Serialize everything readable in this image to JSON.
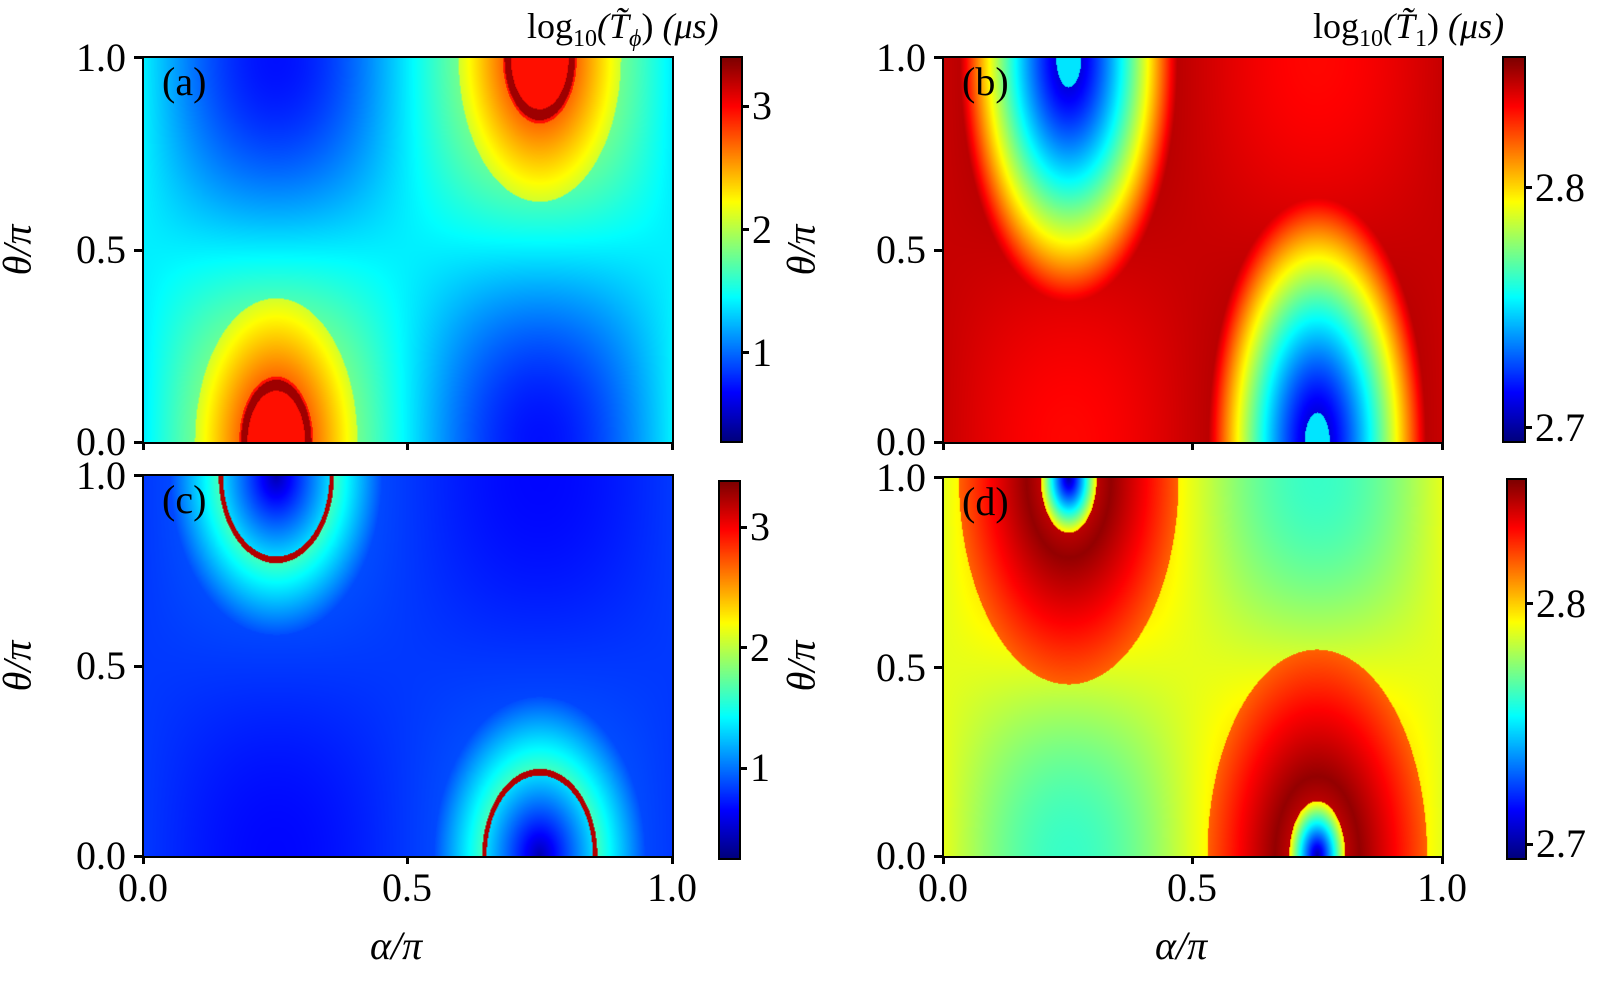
{
  "figure": {
    "xlabel": "α/π",
    "ylabel": "θ/π",
    "xticks": [
      "0.0",
      "0.5",
      "1.0"
    ],
    "yticks": [
      "1.0",
      "0.5",
      "0.0"
    ]
  },
  "colorbars": {
    "top_left": {
      "title_prefix": "log",
      "title_sub": "10",
      "title_var": "(T̃",
      "title_var_sub": "ϕ",
      "title_suffix": ")",
      "title_unit": "(μs)",
      "ticks": [
        "3",
        "2",
        "1"
      ]
    },
    "top_right": {
      "title_prefix": "log",
      "title_sub": "10",
      "title_var": "(T̃",
      "title_var_sub": "1",
      "title_suffix": ")",
      "title_unit": "(μs)",
      "ticks": [
        "2.8",
        "2.7"
      ]
    },
    "bottom_left": {
      "ticks": [
        "3",
        "2",
        "1"
      ]
    },
    "bottom_right": {
      "ticks": [
        "2.8",
        "2.7"
      ]
    }
  },
  "panels": {
    "a": {
      "label": "(a)"
    },
    "b": {
      "label": "(b)"
    },
    "c": {
      "label": "(c)"
    },
    "d": {
      "label": "(d)"
    }
  },
  "chart_data": [
    {
      "type": "heatmap",
      "panel": "(a)",
      "title": "",
      "xlabel": "α/π",
      "ylabel": "θ/π",
      "xlim": [
        0.0,
        1.0
      ],
      "ylim": [
        0.0,
        1.0
      ],
      "xticks": [
        0.0,
        0.5,
        1.0
      ],
      "yticks": [
        0.0,
        0.5,
        1.0
      ],
      "colormap": "jet",
      "colorbar_label": "log10(T̃_ϕ) (μs)",
      "colorbar_range": [
        0.25,
        3.4
      ],
      "colorbar_ticks": [
        1,
        2,
        3
      ],
      "features": [
        {
          "kind": "max",
          "alpha": 0.25,
          "theta": 0.0,
          "value": 3.2,
          "note": "red peak with dark ring"
        },
        {
          "kind": "max",
          "alpha": 0.75,
          "theta": 1.0,
          "value": 3.2,
          "note": "red peak with dark ring"
        },
        {
          "kind": "min",
          "alpha": 0.25,
          "theta": 1.0,
          "value": 0.3
        },
        {
          "kind": "min",
          "alpha": 0.75,
          "theta": 0.0,
          "value": 0.3
        }
      ],
      "background_value": 1.3
    },
    {
      "type": "heatmap",
      "panel": "(b)",
      "xlabel": "α/π",
      "ylabel": "θ/π",
      "xlim": [
        0.0,
        1.0
      ],
      "ylim": [
        0.0,
        1.0
      ],
      "colormap": "jet",
      "colorbar_label": "log10(T̃_1) (μs)",
      "colorbar_range": [
        2.695,
        2.86
      ],
      "colorbar_ticks": [
        2.7,
        2.8
      ],
      "features": [
        {
          "kind": "min",
          "alpha": 0.25,
          "theta": 1.0,
          "value": 2.7,
          "note": "blue well with cyan centre"
        },
        {
          "kind": "min",
          "alpha": 0.75,
          "theta": 0.0,
          "value": 2.7,
          "note": "blue well with cyan centre"
        },
        {
          "kind": "max",
          "alpha": 0.25,
          "theta": 0.25,
          "value": 2.86
        },
        {
          "kind": "max",
          "alpha": 0.75,
          "theta": 0.75,
          "value": 2.86
        }
      ],
      "background_value": 2.85
    },
    {
      "type": "heatmap",
      "panel": "(c)",
      "xlabel": "α/π",
      "ylabel": "θ/π",
      "xlim": [
        0.0,
        1.0
      ],
      "ylim": [
        0.0,
        1.0
      ],
      "colormap": "jet",
      "colorbar_range": [
        0.25,
        3.4
      ],
      "colorbar_ticks": [
        1,
        2,
        3
      ],
      "features": [
        {
          "kind": "ring",
          "alpha_center": 0.25,
          "theta_center": 1.0,
          "alpha_halfwidth": 0.11,
          "theta_extent": 0.22,
          "value": 3.3,
          "note": "thin red elliptical ring"
        },
        {
          "kind": "ring",
          "alpha_center": 0.75,
          "theta_center": 0.0,
          "alpha_halfwidth": 0.11,
          "theta_extent": 0.22,
          "value": 3.3,
          "note": "thin red elliptical ring"
        },
        {
          "kind": "min",
          "alpha": 0.25,
          "theta": 1.0,
          "value": 0.3
        },
        {
          "kind": "min",
          "alpha": 0.75,
          "theta": 0.0,
          "value": 0.3
        }
      ],
      "background_value": 0.7
    },
    {
      "type": "heatmap",
      "panel": "(d)",
      "xlabel": "α/π",
      "ylabel": "θ/π",
      "xlim": [
        0.0,
        1.0
      ],
      "ylim": [
        0.0,
        1.0
      ],
      "colormap": "jet",
      "colorbar_range": [
        2.695,
        2.86
      ],
      "colorbar_ticks": [
        2.7,
        2.8
      ],
      "features": [
        {
          "kind": "min",
          "alpha": 0.25,
          "theta": 1.0,
          "value": 2.7,
          "note": "small blue spot"
        },
        {
          "kind": "min",
          "alpha": 0.75,
          "theta": 0.0,
          "value": 2.7,
          "note": "small blue spot"
        },
        {
          "kind": "max_ring",
          "alpha": 0.25,
          "theta": 0.85,
          "value": 2.86
        },
        {
          "kind": "max_ring",
          "alpha": 0.75,
          "theta": 0.15,
          "value": 2.86
        },
        {
          "kind": "plateau",
          "alpha": 0.25,
          "theta": 0.1,
          "value": 2.77
        },
        {
          "kind": "plateau",
          "alpha": 0.75,
          "theta": 0.9,
          "value": 2.77
        }
      ],
      "background_value": 2.81
    }
  ]
}
